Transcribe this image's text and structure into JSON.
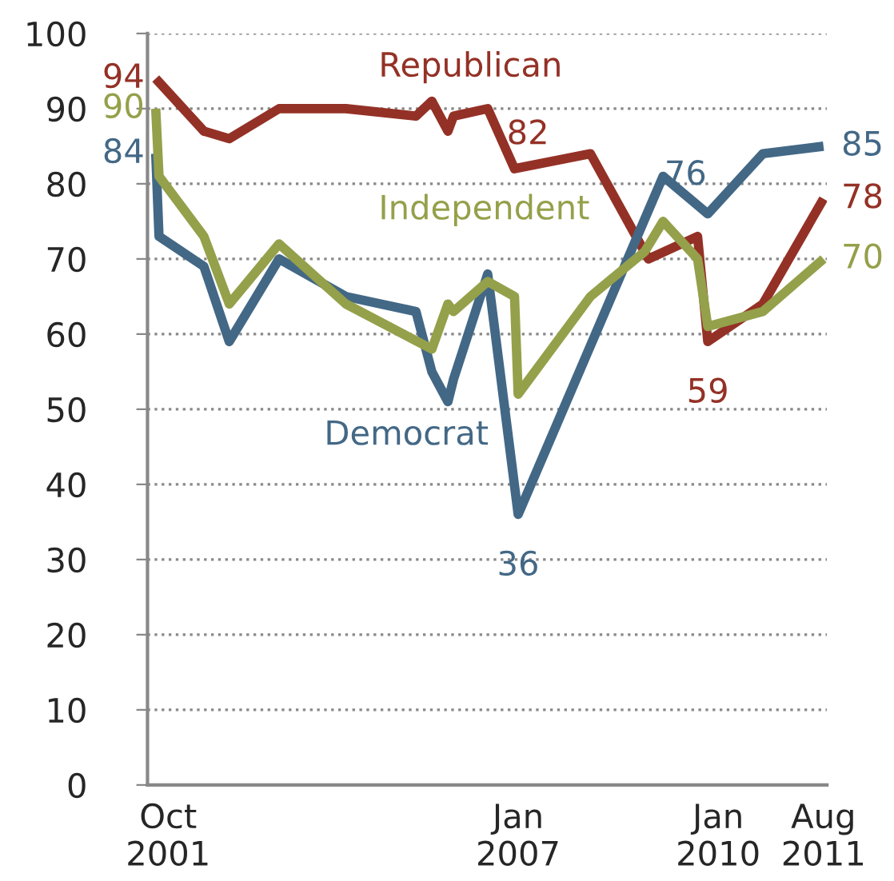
{
  "chart_data": {
    "type": "line",
    "x": [
      "2001-07-25",
      "2001-08-12",
      "2002-04-15",
      "2002-09-01",
      "2003-06-01",
      "2004-06-01",
      "2005-06-20",
      "2005-09-15",
      "2005-12-12",
      "2006-01-12",
      "2006-07-18",
      "2006-12-12",
      "2007-01-01",
      "2008-02-01",
      "2008-11-25",
      "2008-12-15",
      "2009-03-05",
      "2009-09-10",
      "2009-11-05",
      "2010-09-03",
      "2011-08-01"
    ],
    "series": [
      {
        "name": "Republican",
        "color": "#943126",
        "values": [
          94,
          null,
          87,
          86,
          90,
          90,
          89,
          91,
          87,
          89,
          90,
          82,
          null,
          84,
          null,
          70,
          null,
          73,
          59,
          64,
          78
        ],
        "value_labels": [
          "94",
          null,
          null,
          null,
          null,
          null,
          null,
          null,
          null,
          null,
          null,
          "82",
          null,
          null,
          null,
          null,
          null,
          null,
          "59",
          null,
          "78"
        ]
      },
      {
        "name": "Democrat",
        "color": "#436886",
        "values": [
          84,
          73,
          69,
          59,
          70,
          65,
          63,
          55,
          51,
          54,
          68,
          null,
          36,
          null,
          null,
          null,
          81,
          null,
          76,
          84,
          85
        ],
        "value_labels": [
          "84",
          null,
          null,
          null,
          null,
          null,
          null,
          null,
          null,
          null,
          null,
          null,
          "36",
          null,
          null,
          null,
          null,
          null,
          "76",
          null,
          "85"
        ]
      },
      {
        "name": "Independent",
        "color": "#95a04a",
        "values": [
          90,
          81,
          73,
          64,
          72,
          64,
          null,
          58,
          64,
          63,
          67,
          65,
          52,
          65,
          71,
          null,
          75,
          70,
          61,
          63,
          70
        ],
        "value_labels": [
          "90",
          null,
          null,
          null,
          null,
          null,
          null,
          null,
          null,
          null,
          null,
          null,
          null,
          null,
          null,
          null,
          null,
          null,
          null,
          null,
          "70"
        ]
      }
    ],
    "xlim": [
      "2001-06-10",
      "2011-08-20"
    ],
    "xticks": [
      {
        "value": "2001-10-01",
        "label": "Oct\n2001"
      },
      {
        "value": "2007-01-01",
        "label": "Jan\n2007"
      },
      {
        "value": "2010-01-01",
        "label": "Jan\n2010"
      },
      {
        "value": "2011-08-01",
        "label": "Aug\n2011"
      }
    ],
    "ylim": [
      0,
      100
    ],
    "yticks": [
      0,
      10,
      20,
      30,
      40,
      50,
      60,
      70,
      80,
      90,
      100
    ],
    "grid": "y",
    "line_style": "solid",
    "legend": false
  }
}
